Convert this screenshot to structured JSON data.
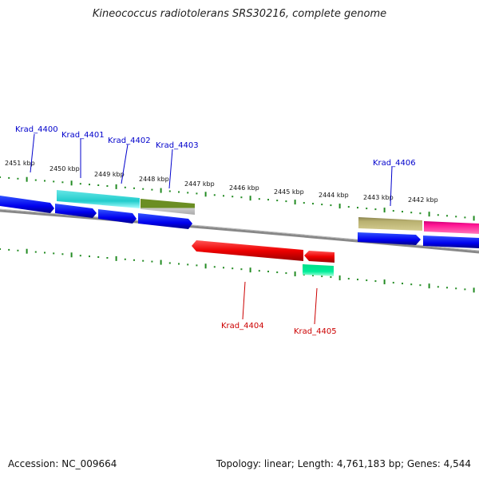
{
  "title": "Kineococcus radiotolerans SRS30216, complete genome",
  "footer": {
    "accession": "Accession: NC_009664",
    "summary": "Topology: linear; Length: 4,761,183 bp; Genes: 4,544"
  },
  "kbp_labels": [
    "2451 kbp",
    "2450 kbp",
    "2449 kbp",
    "2448 kbp",
    "2447 kbp",
    "2446 kbp",
    "2445 kbp",
    "2444 kbp",
    "2443 kbp",
    "2442 kbp"
  ],
  "gene_labels": [
    "Krad_4400",
    "Krad_4401",
    "Krad_4402",
    "Krad_4403",
    "Krad_4406",
    "Krad_4404",
    "Krad_4405"
  ],
  "colors": {
    "forward_label": "#0000cc",
    "reverse_label": "#cc0000",
    "tick": "#228b22",
    "backbone": "#888888",
    "blue_gene": "#0000ee",
    "cyan_gene": "#22cccc",
    "olive_gene": "#6b8e23",
    "khaki_gene": "#b8b070",
    "magenta_gene": "#ff1493",
    "red_gene": "#ee0000",
    "spring_gene": "#00ee99"
  }
}
